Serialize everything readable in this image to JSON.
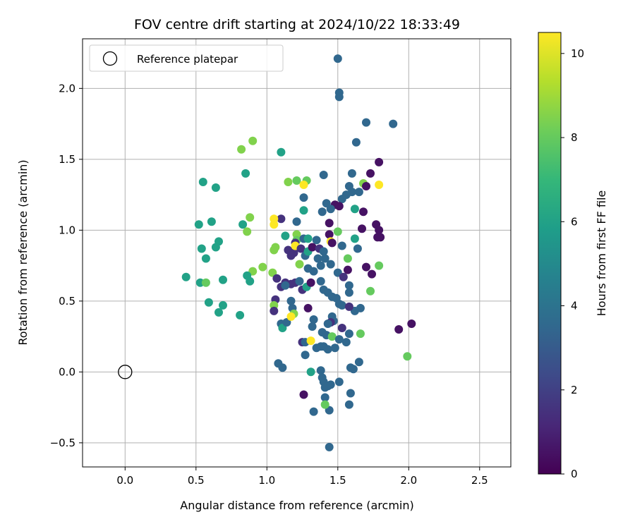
{
  "chart_data": {
    "type": "scatter",
    "title": "FOV centre drift starting at 2024/10/22 18:33:49",
    "xlabel": "Angular distance from reference (arcmin)",
    "ylabel": "Rotation from reference (arcmin)",
    "xlim": [
      -0.3,
      2.72
    ],
    "ylim": [
      -0.67,
      2.35
    ],
    "xticks": [
      0.0,
      0.5,
      1.0,
      1.5,
      2.0,
      2.5
    ],
    "xtick_labels": [
      "0.0",
      "0.5",
      "1.0",
      "1.5",
      "2.0",
      "2.5"
    ],
    "yticks": [
      -0.5,
      0.0,
      0.5,
      1.0,
      1.5,
      2.0
    ],
    "ytick_labels": [
      "−0.5",
      "0.0",
      "0.5",
      "1.0",
      "1.5",
      "2.0"
    ],
    "grid": true,
    "legend": {
      "placement": "upper-left",
      "entries": [
        "Reference platepar"
      ]
    },
    "reference_point": {
      "x": 0.0,
      "y": 0.0
    },
    "colorbar": {
      "label": "Hours from first FF file",
      "colormap": "viridis",
      "range": [
        0,
        10.5
      ],
      "ticks": [
        0,
        2,
        4,
        6,
        8,
        10
      ],
      "tick_labels": [
        "0",
        "2",
        "4",
        "6",
        "8",
        "10"
      ]
    },
    "points": [
      [
        1.5,
        2.21,
        3.5
      ],
      [
        1.51,
        1.97,
        3.5
      ],
      [
        1.51,
        1.94,
        3.5
      ],
      [
        1.7,
        1.76,
        3.5
      ],
      [
        1.89,
        1.75,
        3.5
      ],
      [
        1.63,
        1.62,
        3.5
      ],
      [
        1.1,
        1.55,
        6.0
      ],
      [
        0.82,
        1.57,
        8.5
      ],
      [
        0.9,
        1.63,
        8.5
      ],
      [
        0.85,
        1.4,
        6.0
      ],
      [
        0.55,
        1.34,
        6.0
      ],
      [
        0.64,
        1.3,
        6.0
      ],
      [
        1.4,
        1.39,
        3.5
      ],
      [
        1.6,
        1.4,
        3.5
      ],
      [
        1.21,
        1.35,
        8.0
      ],
      [
        1.28,
        1.35,
        8.0
      ],
      [
        1.15,
        1.34,
        8.5
      ],
      [
        1.26,
        1.32,
        10.5
      ],
      [
        1.26,
        1.23,
        3.5
      ],
      [
        1.58,
        1.31,
        3.5
      ],
      [
        1.6,
        1.27,
        3.5
      ],
      [
        1.65,
        1.27,
        3.5
      ],
      [
        1.68,
        1.33,
        8.5
      ],
      [
        1.7,
        1.31,
        0.5
      ],
      [
        1.73,
        1.4,
        0.5
      ],
      [
        1.79,
        1.48,
        0.5
      ],
      [
        1.79,
        1.32,
        10.5
      ],
      [
        1.53,
        1.22,
        3.5
      ],
      [
        1.56,
        1.25,
        3.5
      ],
      [
        1.42,
        1.19,
        3.5
      ],
      [
        1.48,
        1.18,
        0.5
      ],
      [
        1.51,
        1.17,
        0.5
      ],
      [
        1.45,
        1.15,
        3.5
      ],
      [
        1.39,
        1.13,
        3.5
      ],
      [
        1.62,
        1.15,
        6.0
      ],
      [
        1.68,
        1.13,
        0.5
      ],
      [
        1.26,
        1.14,
        6.0
      ],
      [
        1.21,
        1.06,
        3.5
      ],
      [
        1.1,
        1.08,
        1.5
      ],
      [
        1.05,
        1.08,
        10.5
      ],
      [
        1.05,
        1.04,
        10.5
      ],
      [
        0.88,
        1.09,
        8.5
      ],
      [
        0.61,
        1.06,
        6.0
      ],
      [
        0.52,
        1.04,
        6.0
      ],
      [
        0.83,
        1.04,
        6.0
      ],
      [
        0.86,
        0.99,
        8.5
      ],
      [
        1.13,
        0.96,
        6.0
      ],
      [
        1.21,
        0.97,
        8.5
      ],
      [
        1.21,
        0.93,
        8.0
      ],
      [
        1.26,
        0.94,
        3.5
      ],
      [
        1.29,
        0.94,
        6.0
      ],
      [
        1.35,
        0.93,
        3.5
      ],
      [
        1.44,
        1.05,
        0.5
      ],
      [
        1.44,
        0.97,
        0.5
      ],
      [
        1.5,
        0.99,
        8.0
      ],
      [
        1.45,
        0.92,
        10.5
      ],
      [
        1.46,
        0.91,
        0.5
      ],
      [
        1.53,
        0.89,
        3.5
      ],
      [
        1.62,
        0.94,
        6.0
      ],
      [
        1.67,
        1.01,
        0.5
      ],
      [
        1.77,
        1.04,
        0.5
      ],
      [
        1.79,
        1.0,
        0.5
      ],
      [
        1.78,
        0.95,
        0.5
      ],
      [
        1.8,
        0.95,
        0.5
      ],
      [
        1.64,
        0.87,
        3.5
      ],
      [
        0.66,
        0.92,
        6.0
      ],
      [
        0.64,
        0.88,
        6.0
      ],
      [
        0.54,
        0.87,
        6.0
      ],
      [
        0.57,
        0.8,
        6.0
      ],
      [
        1.06,
        0.88,
        8.5
      ],
      [
        1.05,
        0.86,
        8.5
      ],
      [
        1.15,
        0.86,
        1.5
      ],
      [
        1.19,
        0.84,
        1.5
      ],
      [
        1.17,
        0.82,
        1.5
      ],
      [
        1.2,
        0.91,
        1.5
      ],
      [
        1.2,
        0.89,
        10.5
      ],
      [
        1.24,
        0.87,
        1.5
      ],
      [
        1.27,
        0.82,
        3.5
      ],
      [
        1.29,
        0.85,
        6.0
      ],
      [
        1.32,
        0.88,
        0.5
      ],
      [
        1.37,
        0.87,
        1.5
      ],
      [
        1.4,
        0.85,
        3.5
      ],
      [
        1.36,
        0.8,
        3.5
      ],
      [
        1.41,
        0.8,
        3.5
      ],
      [
        1.23,
        0.76,
        8.5
      ],
      [
        1.29,
        0.73,
        3.5
      ],
      [
        1.33,
        0.71,
        3.5
      ],
      [
        1.38,
        0.75,
        3.5
      ],
      [
        1.45,
        0.76,
        3.5
      ],
      [
        1.5,
        0.7,
        3.5
      ],
      [
        1.54,
        0.67,
        1.5
      ],
      [
        1.57,
        0.8,
        8.0
      ],
      [
        1.57,
        0.72,
        0.5
      ],
      [
        1.7,
        0.74,
        0.5
      ],
      [
        1.74,
        0.69,
        0.5
      ],
      [
        1.79,
        0.75,
        8.0
      ],
      [
        0.97,
        0.74,
        8.5
      ],
      [
        0.9,
        0.71,
        8.5
      ],
      [
        1.04,
        0.7,
        8.5
      ],
      [
        0.86,
        0.68,
        6.0
      ],
      [
        0.88,
        0.64,
        6.0
      ],
      [
        0.43,
        0.67,
        6.0
      ],
      [
        0.53,
        0.63,
        6.0
      ],
      [
        0.57,
        0.63,
        8.0
      ],
      [
        0.69,
        0.65,
        6.0
      ],
      [
        1.07,
        0.66,
        1.5
      ],
      [
        1.1,
        0.6,
        1.5
      ],
      [
        1.13,
        0.63,
        1.5
      ],
      [
        1.17,
        0.62,
        1.5
      ],
      [
        1.13,
        0.61,
        3.5
      ],
      [
        1.2,
        0.63,
        1.5
      ],
      [
        1.23,
        0.64,
        3.5
      ],
      [
        1.25,
        0.58,
        1.5
      ],
      [
        1.28,
        0.6,
        6.0
      ],
      [
        1.31,
        0.63,
        0.5
      ],
      [
        1.38,
        0.64,
        3.5
      ],
      [
        1.4,
        0.58,
        3.5
      ],
      [
        1.43,
        0.56,
        3.5
      ],
      [
        1.46,
        0.53,
        3.5
      ],
      [
        1.49,
        0.52,
        3.5
      ],
      [
        1.51,
        0.48,
        3.5
      ],
      [
        1.53,
        0.47,
        3.5
      ],
      [
        1.58,
        0.61,
        3.5
      ],
      [
        1.58,
        0.56,
        3.5
      ],
      [
        1.62,
        0.43,
        3.5
      ],
      [
        1.66,
        0.45,
        3.5
      ],
      [
        1.73,
        0.57,
        8.0
      ],
      [
        1.58,
        0.46,
        1.5
      ],
      [
        1.46,
        0.39,
        3.5
      ],
      [
        1.47,
        0.36,
        3.5
      ],
      [
        1.45,
        0.35,
        1.5
      ],
      [
        1.43,
        0.34,
        3.5
      ],
      [
        1.53,
        0.31,
        1.5
      ],
      [
        1.93,
        0.3,
        0.5
      ],
      [
        2.02,
        0.34,
        0.5
      ],
      [
        0.59,
        0.49,
        6.0
      ],
      [
        0.69,
        0.47,
        6.0
      ],
      [
        0.66,
        0.42,
        6.0
      ],
      [
        0.81,
        0.4,
        6.0
      ],
      [
        1.06,
        0.51,
        1.5
      ],
      [
        1.05,
        0.47,
        8.5
      ],
      [
        1.05,
        0.43,
        1.5
      ],
      [
        1.1,
        0.34,
        3.5
      ],
      [
        1.11,
        0.31,
        6.0
      ],
      [
        1.14,
        0.35,
        3.5
      ],
      [
        1.17,
        0.5,
        3.5
      ],
      [
        1.18,
        0.45,
        3.5
      ],
      [
        1.19,
        0.41,
        8.5
      ],
      [
        1.17,
        0.39,
        10.5
      ],
      [
        1.29,
        0.45,
        0.5
      ],
      [
        1.33,
        0.37,
        3.5
      ],
      [
        1.32,
        0.32,
        3.5
      ],
      [
        1.39,
        0.28,
        3.5
      ],
      [
        1.42,
        0.26,
        3.5
      ],
      [
        1.46,
        0.25,
        8.0
      ],
      [
        1.51,
        0.23,
        3.5
      ],
      [
        1.56,
        0.21,
        3.5
      ],
      [
        1.58,
        0.27,
        3.5
      ],
      [
        1.66,
        0.27,
        8.0
      ],
      [
        1.25,
        0.21,
        1.5
      ],
      [
        1.27,
        0.21,
        3.5
      ],
      [
        1.31,
        0.22,
        10.5
      ],
      [
        1.35,
        0.17,
        3.5
      ],
      [
        1.38,
        0.18,
        3.5
      ],
      [
        1.4,
        0.18,
        3.5
      ],
      [
        1.43,
        0.16,
        3.5
      ],
      [
        1.48,
        0.17,
        3.5
      ],
      [
        1.27,
        0.12,
        3.5
      ],
      [
        1.08,
        0.06,
        3.5
      ],
      [
        1.11,
        0.03,
        3.5
      ],
      [
        1.31,
        0.0,
        6.0
      ],
      [
        1.38,
        0.01,
        3.5
      ],
      [
        1.39,
        -0.04,
        3.5
      ],
      [
        1.4,
        -0.07,
        3.5
      ],
      [
        1.41,
        -0.11,
        3.5
      ],
      [
        1.43,
        -0.1,
        3.5
      ],
      [
        1.45,
        -0.09,
        3.5
      ],
      [
        1.41,
        -0.18,
        3.5
      ],
      [
        1.44,
        -0.27,
        3.5
      ],
      [
        1.51,
        -0.07,
        3.5
      ],
      [
        1.59,
        0.03,
        3.5
      ],
      [
        1.61,
        0.02,
        3.5
      ],
      [
        1.65,
        0.07,
        3.5
      ],
      [
        1.59,
        -0.15,
        3.5
      ],
      [
        1.58,
        -0.23,
        3.5
      ],
      [
        1.33,
        -0.28,
        3.5
      ],
      [
        1.41,
        -0.23,
        8.0
      ],
      [
        1.26,
        -0.16,
        0.5
      ],
      [
        1.44,
        -0.53,
        3.5
      ],
      [
        1.99,
        0.11,
        8.0
      ]
    ]
  }
}
